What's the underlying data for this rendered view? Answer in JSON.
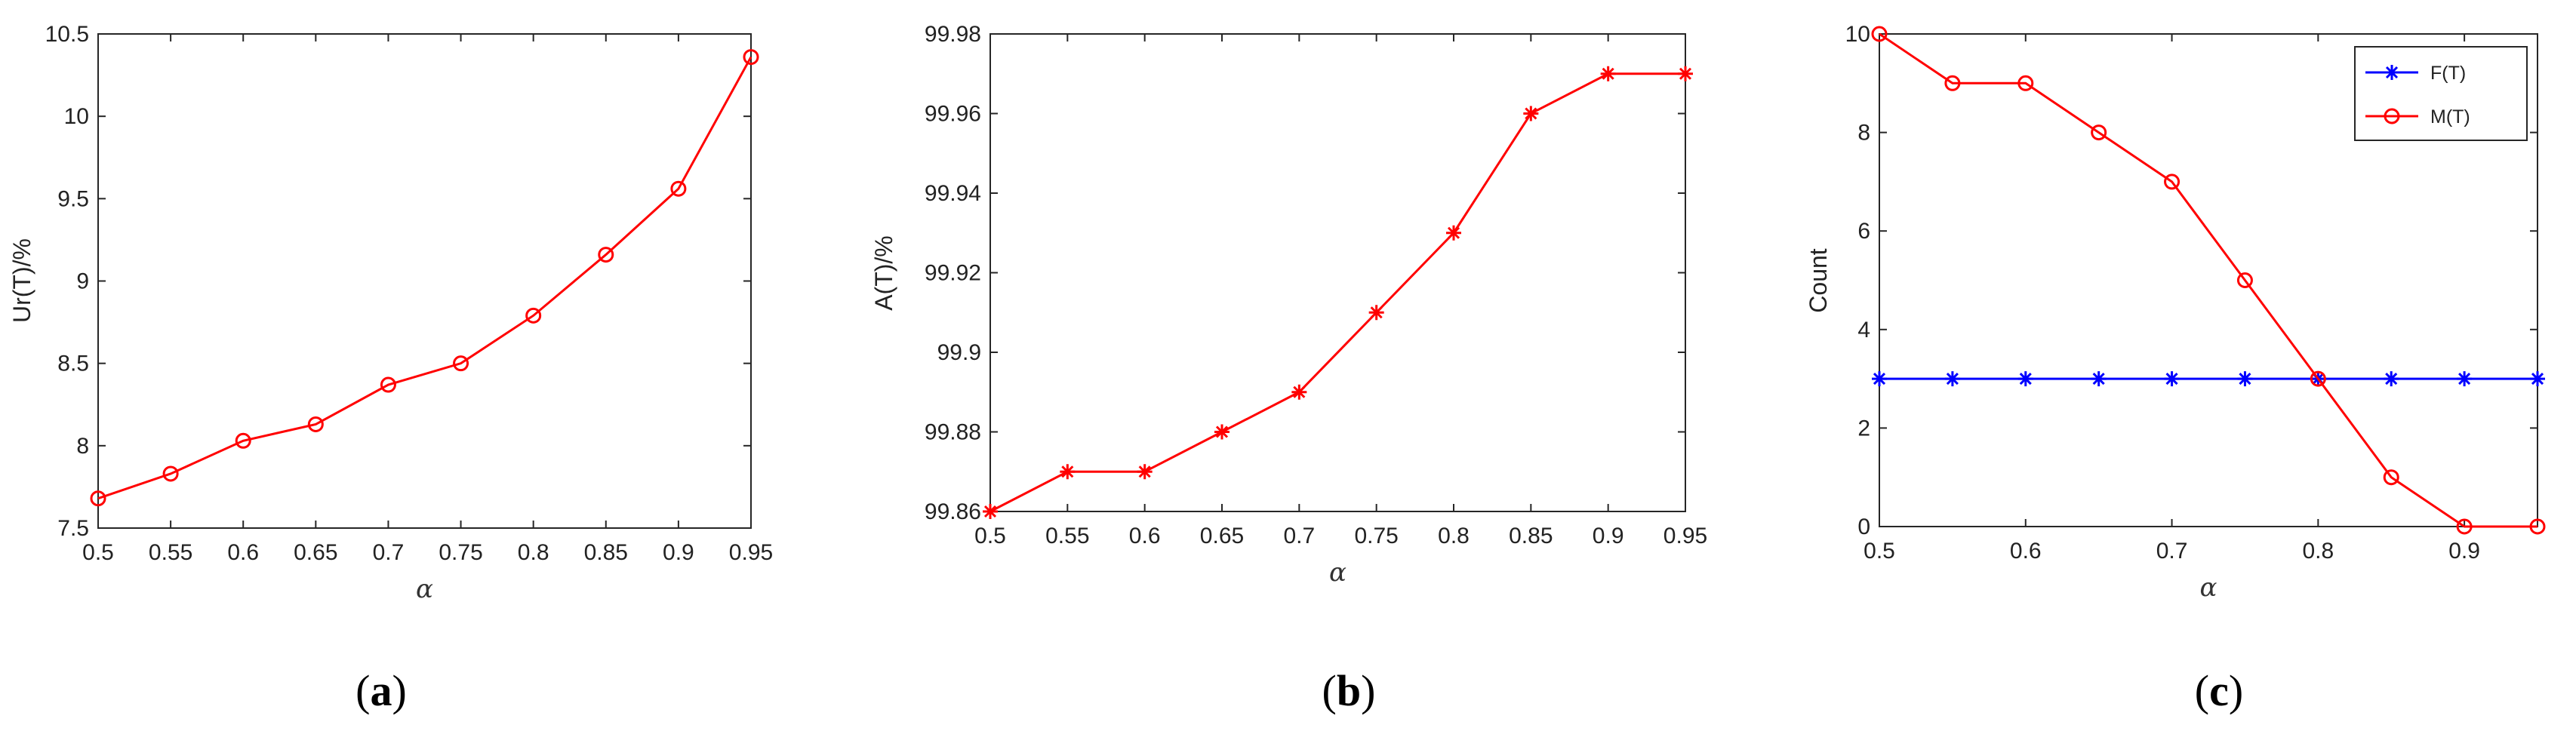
{
  "chart_data": [
    {
      "type": "line",
      "panel_label": "a",
      "xlabel": "α",
      "ylabel": "Ur(T)/%",
      "xlim": [
        0.5,
        0.95
      ],
      "ylim": [
        7.5,
        10.5
      ],
      "x_ticks": [
        "0.5",
        "0.55",
        "0.6",
        "0.65",
        "0.7",
        "0.75",
        "0.8",
        "0.85",
        "0.9",
        "0.95"
      ],
      "y_ticks": [
        "7.5",
        "8",
        "8.5",
        "9",
        "9.5",
        "10",
        "10.5"
      ],
      "grid": false,
      "x": [
        0.5,
        0.55,
        0.6,
        0.65,
        0.7,
        0.75,
        0.8,
        0.85,
        0.9,
        0.95
      ],
      "series": [
        {
          "color": "#ff0000",
          "marker": "circle",
          "values": [
            7.68,
            7.83,
            8.03,
            8.13,
            8.37,
            8.5,
            8.79,
            9.16,
            9.56,
            10.36
          ]
        }
      ]
    },
    {
      "type": "line",
      "panel_label": "b",
      "xlabel": "α",
      "ylabel": "A(T)/%",
      "xlim": [
        0.5,
        0.95
      ],
      "ylim": [
        99.86,
        99.98
      ],
      "x_ticks": [
        "0.5",
        "0.55",
        "0.6",
        "0.65",
        "0.7",
        "0.75",
        "0.8",
        "0.85",
        "0.9",
        "0.95"
      ],
      "y_ticks": [
        "99.86",
        "99.88",
        "99.9",
        "99.92",
        "99.94",
        "99.96",
        "99.98"
      ],
      "grid": false,
      "x": [
        0.5,
        0.55,
        0.6,
        0.65,
        0.7,
        0.75,
        0.8,
        0.85,
        0.9,
        0.95
      ],
      "series": [
        {
          "color": "#ff0000",
          "marker": "asterisk",
          "values": [
            99.86,
            99.87,
            99.87,
            99.88,
            99.89,
            99.91,
            99.93,
            99.96,
            99.97,
            99.97
          ]
        }
      ]
    },
    {
      "type": "line",
      "panel_label": "c",
      "xlabel": "α",
      "ylabel": "Count",
      "xlim": [
        0.5,
        0.95
      ],
      "ylim": [
        0,
        10
      ],
      "x_ticks": [
        "0.5",
        "0.6",
        "0.7",
        "0.8",
        "0.9"
      ],
      "y_ticks": [
        "0",
        "2",
        "4",
        "6",
        "8",
        "10"
      ],
      "grid": false,
      "legend_position": "top-right",
      "x": [
        0.5,
        0.55,
        0.6,
        0.65,
        0.7,
        0.75,
        0.8,
        0.85,
        0.9,
        0.95
      ],
      "series": [
        {
          "name": "F(T)",
          "color": "#0000ff",
          "marker": "asterisk",
          "values": [
            3,
            3,
            3,
            3,
            3,
            3,
            3,
            3,
            3,
            3
          ]
        },
        {
          "name": "M(T)",
          "color": "#ff0000",
          "marker": "circle",
          "values": [
            10,
            9,
            9,
            8,
            7,
            5,
            3,
            1,
            0,
            0
          ]
        }
      ]
    }
  ]
}
